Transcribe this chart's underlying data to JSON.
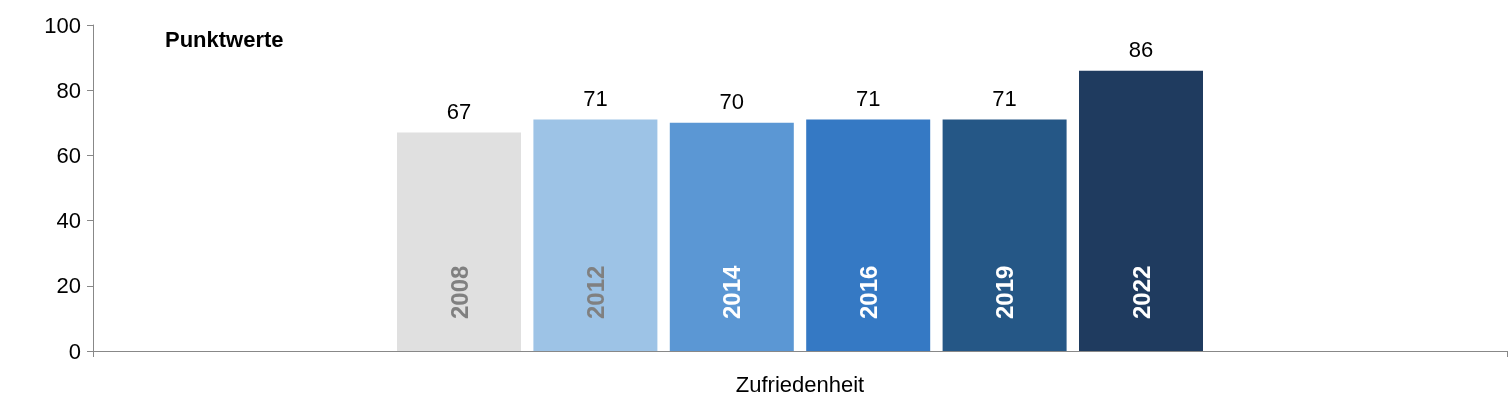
{
  "chart_data": {
    "type": "bar",
    "ylabel": "Punktwerte",
    "categories": [
      "Zufriedenheit"
    ],
    "series": [
      {
        "name": "2008",
        "color": "#e0e0e0",
        "values": [
          67
        ]
      },
      {
        "name": "2012",
        "color": "#9dc3e6",
        "values": [
          71
        ]
      },
      {
        "name": "2014",
        "color": "#5b97d4",
        "values": [
          70
        ]
      },
      {
        "name": "2016",
        "color": "#3579c4",
        "values": [
          71
        ]
      },
      {
        "name": "2019",
        "color": "#255786",
        "values": [
          71
        ]
      },
      {
        "name": "2022",
        "color": "#1f3b5f",
        "values": [
          86
        ]
      }
    ],
    "ylim": [
      0,
      100
    ],
    "yticks": [
      0,
      20,
      40,
      60,
      80,
      100
    ],
    "grid": false,
    "legend": false,
    "data_labels": true
  }
}
